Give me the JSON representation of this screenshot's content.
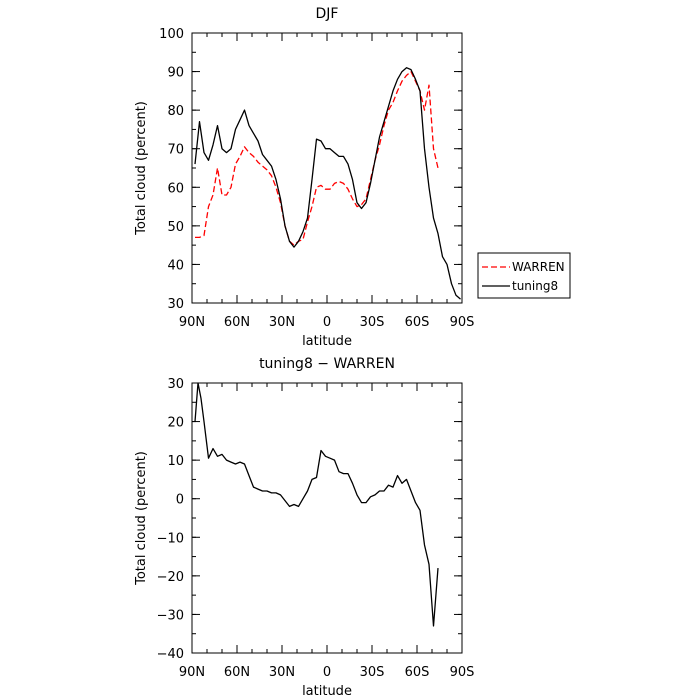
{
  "chart_data": [
    {
      "type": "line",
      "title": "DJF",
      "xlabel": "latitude",
      "ylabel": "Total cloud (percent)",
      "xlim": [
        90,
        -90
      ],
      "ylim": [
        30,
        100
      ],
      "xticks": [
        90,
        60,
        30,
        0,
        -30,
        -60,
        -90
      ],
      "xtick_labels": [
        "90N",
        "60N",
        "30N",
        "0",
        "30S",
        "60S",
        "90S"
      ],
      "yticks": [
        30,
        40,
        50,
        60,
        70,
        80,
        90,
        100
      ],
      "ytick_labels": [
        "30",
        "40",
        "50",
        "60",
        "70",
        "80",
        "90",
        "100"
      ],
      "legend_position": "right",
      "series": [
        {
          "name": "WARREN",
          "color": "#ff0000",
          "style": "dashed",
          "x": [
            88,
            85,
            82,
            79,
            76,
            73,
            70,
            67,
            64,
            61,
            58,
            55,
            52,
            49,
            46,
            43,
            40,
            37,
            34,
            31,
            28,
            25,
            22,
            19,
            16,
            13,
            10,
            7,
            4,
            1,
            -2,
            -5,
            -8,
            -11,
            -14,
            -17,
            -20,
            -23,
            -26,
            -29,
            -32,
            -35,
            -38,
            -41,
            -44,
            -47,
            -50,
            -53,
            -56,
            -59,
            -62,
            -65,
            -68,
            -71,
            -74
          ],
          "y": [
            47,
            47,
            47.5,
            55,
            58,
            65,
            58,
            58,
            60,
            66,
            68,
            70.5,
            69,
            68,
            66.5,
            65.5,
            64.5,
            63,
            60,
            56,
            50,
            46,
            45,
            46,
            46.5,
            51,
            55,
            60,
            60.5,
            59.5,
            59.5,
            61,
            61.5,
            61,
            59.5,
            57,
            55,
            55.5,
            57,
            62,
            67,
            71,
            76,
            80,
            82,
            85,
            87.5,
            89,
            90,
            87.5,
            85,
            80,
            86.5,
            70,
            65
          ]
        },
        {
          "name": "tuning8",
          "color": "#000000",
          "style": "solid",
          "x": [
            88,
            85,
            82,
            79,
            76,
            73,
            70,
            67,
            64,
            61,
            58,
            55,
            52,
            49,
            46,
            43,
            40,
            37,
            34,
            31,
            28,
            25,
            22,
            19,
            16,
            13,
            10,
            7,
            4,
            1,
            -2,
            -5,
            -8,
            -11,
            -14,
            -17,
            -20,
            -23,
            -26,
            -29,
            -32,
            -35,
            -38,
            -41,
            -44,
            -47,
            -50,
            -53,
            -56,
            -59,
            -62,
            -65,
            -68,
            -71,
            -74,
            -77,
            -80,
            -83,
            -86,
            -89
          ],
          "y": [
            66,
            77,
            69,
            67,
            71,
            76,
            70,
            69,
            70,
            75,
            77.5,
            80,
            76,
            74,
            72,
            68.5,
            67,
            65.5,
            62,
            57,
            50,
            46,
            44.5,
            46,
            48.5,
            52,
            62,
            72.5,
            72,
            70,
            70,
            69,
            68,
            68,
            66,
            62,
            56,
            54.5,
            56,
            61,
            67,
            73,
            77,
            81,
            85,
            88,
            90,
            91,
            90.5,
            88,
            85,
            70,
            60,
            52,
            48,
            42,
            40,
            35,
            32,
            31
          ]
        }
      ]
    },
    {
      "type": "line",
      "title": "tuning8 − WARREN",
      "xlabel": "latitude",
      "ylabel": "Total cloud (percent)",
      "xlim": [
        90,
        -90
      ],
      "ylim": [
        -40,
        30
      ],
      "xticks": [
        90,
        60,
        30,
        0,
        -30,
        -60,
        -90
      ],
      "xtick_labels": [
        "90N",
        "60N",
        "30N",
        "0",
        "30S",
        "60S",
        "90S"
      ],
      "yticks": [
        -40,
        -30,
        -20,
        -10,
        0,
        10,
        20,
        30
      ],
      "ytick_labels": [
        "−40",
        "−30",
        "−20",
        "−10",
        "0",
        "10",
        "20",
        "30"
      ],
      "series": [
        {
          "color": "#000000",
          "style": "solid",
          "x": [
            88,
            86,
            84,
            82,
            79,
            76,
            73,
            70,
            67,
            64,
            61,
            58,
            55,
            52,
            49,
            46,
            43,
            40,
            37,
            34,
            31,
            28,
            25,
            22,
            19,
            16,
            13,
            10,
            7,
            4,
            1,
            -2,
            -5,
            -8,
            -11,
            -14,
            -17,
            -20,
            -23,
            -26,
            -29,
            -32,
            -35,
            -38,
            -41,
            -44,
            -47,
            -50,
            -53,
            -56,
            -59,
            -62,
            -65,
            -68,
            -71,
            -74
          ],
          "y": [
            20,
            30,
            26,
            20,
            10.5,
            13,
            11,
            11.5,
            10,
            9.5,
            9,
            9.5,
            9,
            6,
            3,
            2.5,
            2,
            2,
            1.5,
            1.5,
            1,
            -0.5,
            -2,
            -1.5,
            -2,
            0,
            2,
            5,
            5.5,
            12.5,
            11,
            10.5,
            10,
            7,
            6.5,
            6.5,
            4,
            1,
            -1,
            -1,
            0.5,
            1,
            2,
            2,
            3.5,
            3,
            6,
            4,
            5,
            2,
            -1,
            -3,
            -12,
            -17,
            -33,
            -18
          ]
        }
      ]
    }
  ]
}
